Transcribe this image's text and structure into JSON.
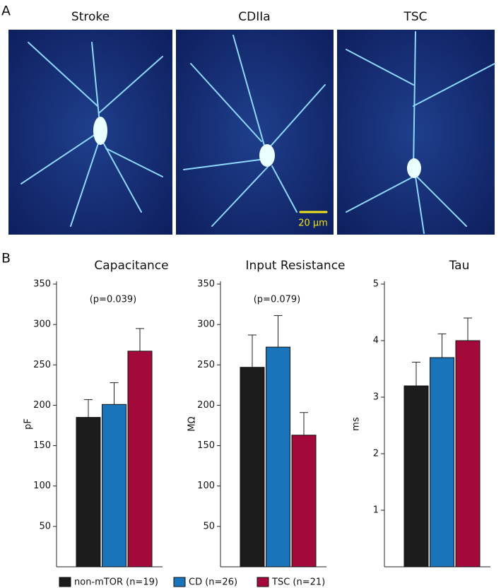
{
  "panel_labels": [
    "A",
    "B"
  ],
  "images": [
    {
      "label": "Stroke"
    },
    {
      "label": "CDIIa"
    },
    {
      "label": "TSC"
    }
  ],
  "scale_bar": "20 µm",
  "legend": [
    {
      "name": "non-mTOR (n=19)",
      "color": "#1c1c1c"
    },
    {
      "name": "CD (n=26)",
      "color": "#1a74b9"
    },
    {
      "name": "TSC (n=21)",
      "color": "#a30a3a"
    }
  ],
  "chart_data": [
    {
      "type": "bar",
      "title": "Capacitance",
      "ylabel": "pF",
      "annotation": "(p=0.039)",
      "values": [
        185,
        201,
        267
      ],
      "errors": [
        22,
        27,
        28
      ],
      "ylim": [
        0,
        350
      ],
      "yticks": [
        50,
        100,
        150,
        200,
        250,
        300,
        350
      ]
    },
    {
      "type": "bar",
      "title": "Input Resistance",
      "ylabel": "MΩ",
      "annotation": "(p=0.079)",
      "values": [
        247,
        272,
        163
      ],
      "errors": [
        40,
        39,
        28
      ],
      "ylim": [
        0,
        350
      ],
      "yticks": [
        50,
        100,
        150,
        200,
        250,
        300,
        350
      ]
    },
    {
      "type": "bar",
      "title": "Tau",
      "ylabel": "ms",
      "values": [
        3.2,
        3.7,
        4.0
      ],
      "errors": [
        0.42,
        0.42,
        0.4
      ],
      "ylim": [
        0,
        5
      ],
      "yticks": [
        1,
        2,
        3,
        4,
        5
      ]
    }
  ]
}
